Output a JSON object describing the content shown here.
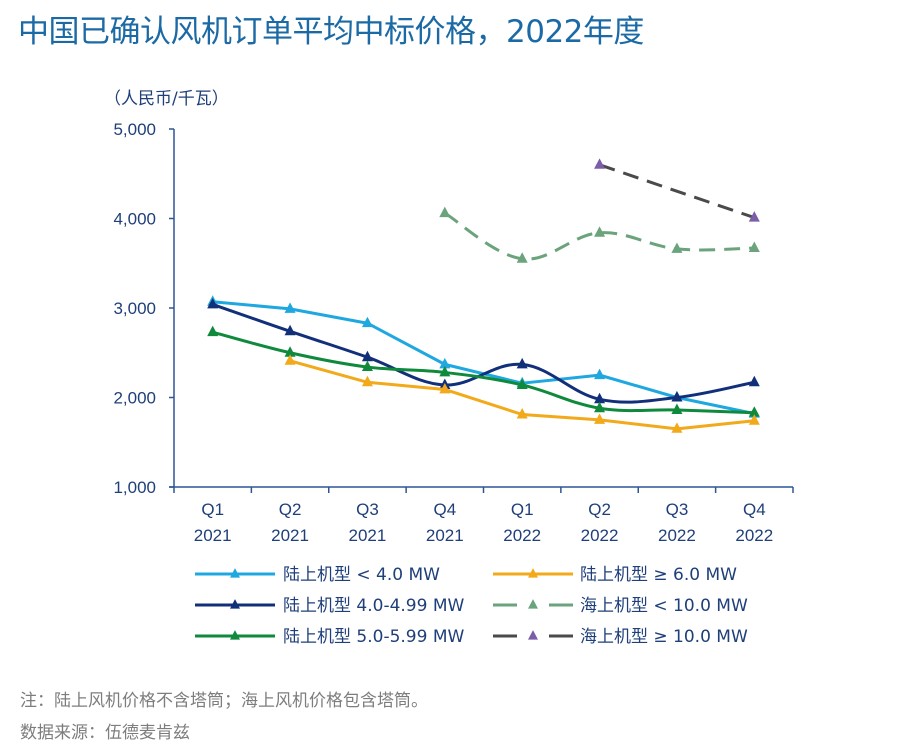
{
  "chart_data": {
    "type": "line",
    "title": "中国已确认风机订单平均中标价格，2022年度",
    "ylabel": "（人民币/千瓦）",
    "xlabel": "",
    "ylim": [
      1000,
      5000
    ],
    "yticks": [
      1000,
      2000,
      3000,
      4000,
      5000
    ],
    "ytick_labels": [
      "1,000",
      "2,000",
      "3,000",
      "4,000",
      "5,000"
    ],
    "categories": [
      {
        "q": "Q1",
        "y": "2021"
      },
      {
        "q": "Q2",
        "y": "2021"
      },
      {
        "q": "Q3",
        "y": "2021"
      },
      {
        "q": "Q4",
        "y": "2021"
      },
      {
        "q": "Q1",
        "y": "2022"
      },
      {
        "q": "Q2",
        "y": "2022"
      },
      {
        "q": "Q3",
        "y": "2022"
      },
      {
        "q": "Q4",
        "y": "2022"
      }
    ],
    "grid": false,
    "legend_position": "bottom",
    "series": [
      {
        "name": "陆上机型 < 4.0 MW",
        "color": "#1fa8e0",
        "marker_color": "#1fa8e0",
        "dashed": false,
        "smooth": false,
        "values": [
          3070,
          2990,
          2830,
          2370,
          2160,
          2250,
          2000,
          1820
        ]
      },
      {
        "name": "陆上机型 4.0-4.99 MW",
        "color": "#12307a",
        "marker_color": "#12307a",
        "dashed": false,
        "smooth": true,
        "values": [
          3040,
          2740,
          2450,
          2140,
          2370,
          1980,
          2000,
          2170
        ]
      },
      {
        "name": "陆上机型 5.0-5.99 MW",
        "color": "#0f8a3c",
        "marker_color": "#0f8a3c",
        "dashed": false,
        "smooth": true,
        "values": [
          2730,
          2500,
          2340,
          2280,
          2140,
          1880,
          1860,
          1830
        ]
      },
      {
        "name": "陆上机型 ≥ 6.0 MW",
        "color": "#f2a91a",
        "marker_color": "#f2a91a",
        "dashed": false,
        "smooth": false,
        "values": [
          null,
          2410,
          2170,
          2090,
          1810,
          1750,
          1650,
          1740
        ]
      },
      {
        "name": "海上机型 < 10.0 MW",
        "color": "#6aa37c",
        "marker_color": "#6aa37c",
        "dashed": true,
        "smooth": true,
        "values": [
          null,
          null,
          null,
          4060,
          3550,
          3840,
          3660,
          3670
        ]
      },
      {
        "name": "海上机型 ≥ 10.0 MW",
        "color": "#4a4a4a",
        "marker_color": "#7b5ea7",
        "dashed": true,
        "smooth": false,
        "values": [
          null,
          null,
          null,
          null,
          null,
          4600,
          null,
          4010
        ]
      }
    ],
    "legend_order": [
      0,
      3,
      1,
      4,
      2,
      5
    ]
  },
  "notes": {
    "note": "注：陆上风机价格不含塔筒；海上风机价格包含塔筒。",
    "source": "数据来源：伍德麦肯兹"
  }
}
